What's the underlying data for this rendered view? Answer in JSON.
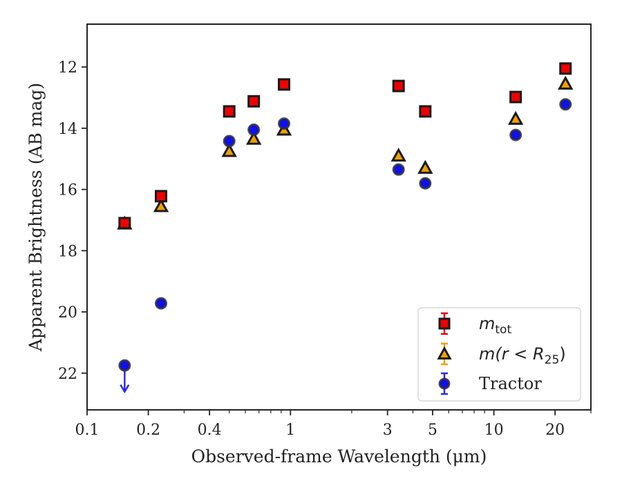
{
  "chart_data": {
    "type": "scatter",
    "title": "",
    "xlabel": "Observed-frame Wavelength (μm)",
    "ylabel": "Apparent Brightness (AB mag)",
    "xscale": "log",
    "xlim": [
      0.1,
      30
    ],
    "ylim": [
      23.2,
      10.6
    ],
    "y_inverted": true,
    "grid": false,
    "legend_position": "lower-right",
    "x_ticks": [
      {
        "value": 0.1,
        "label": "0.1"
      },
      {
        "value": 0.2,
        "label": "0.2"
      },
      {
        "value": 0.4,
        "label": "0.4"
      },
      {
        "value": 1,
        "label": "1"
      },
      {
        "value": 3,
        "label": "3"
      },
      {
        "value": 5,
        "label": "5"
      },
      {
        "value": 10,
        "label": "10"
      },
      {
        "value": 20,
        "label": "20"
      }
    ],
    "y_ticks": [
      {
        "value": 12,
        "label": "12"
      },
      {
        "value": 14,
        "label": "14"
      },
      {
        "value": 16,
        "label": "16"
      },
      {
        "value": 18,
        "label": "18"
      },
      {
        "value": 20,
        "label": "20"
      },
      {
        "value": 22,
        "label": "22"
      }
    ],
    "series": [
      {
        "marker": "square",
        "color": "#ee0000",
        "edge_color": "#1a1a1a",
        "legend": {
          "symbol": "m",
          "subscript": "tot",
          "suffix": ""
        },
        "points": [
          {
            "x": 0.153,
            "y": 17.1
          },
          {
            "x": 0.231,
            "y": 16.22
          },
          {
            "x": 0.5,
            "y": 13.45
          },
          {
            "x": 0.66,
            "y": 13.12
          },
          {
            "x": 0.93,
            "y": 12.57
          },
          {
            "x": 3.4,
            "y": 12.62
          },
          {
            "x": 4.6,
            "y": 13.45
          },
          {
            "x": 12.8,
            "y": 12.98
          },
          {
            "x": 22.5,
            "y": 12.05
          }
        ]
      },
      {
        "marker": "triangle",
        "color": "#f0a000",
        "edge_color": "#1a1a1a",
        "legend": {
          "symbol": "m",
          "subscript": "",
          "suffix": "(r < R",
          "suffix_sub": "25",
          "suffix_end": ")"
        },
        "points": [
          {
            "x": 0.153,
            "y": 17.12
          },
          {
            "x": 0.231,
            "y": 16.55
          },
          {
            "x": 0.5,
            "y": 14.75
          },
          {
            "x": 0.66,
            "y": 14.35
          },
          {
            "x": 0.93,
            "y": 14.05
          },
          {
            "x": 3.4,
            "y": 14.9
          },
          {
            "x": 4.6,
            "y": 15.3
          },
          {
            "x": 12.8,
            "y": 13.7
          },
          {
            "x": 22.5,
            "y": 12.55
          }
        ]
      },
      {
        "marker": "circle",
        "color": "#1010ee",
        "edge_color": "#333333",
        "legend": {
          "text": "Tractor"
        },
        "upper_limit_x": 0.153,
        "points": [
          {
            "x": 0.153,
            "y": 21.75
          },
          {
            "x": 0.231,
            "y": 19.72
          },
          {
            "x": 0.5,
            "y": 14.42
          },
          {
            "x": 0.66,
            "y": 14.05
          },
          {
            "x": 0.93,
            "y": 13.85
          },
          {
            "x": 3.4,
            "y": 15.35
          },
          {
            "x": 4.6,
            "y": 15.8
          },
          {
            "x": 12.8,
            "y": 14.22
          },
          {
            "x": 22.5,
            "y": 13.22
          }
        ]
      }
    ]
  }
}
